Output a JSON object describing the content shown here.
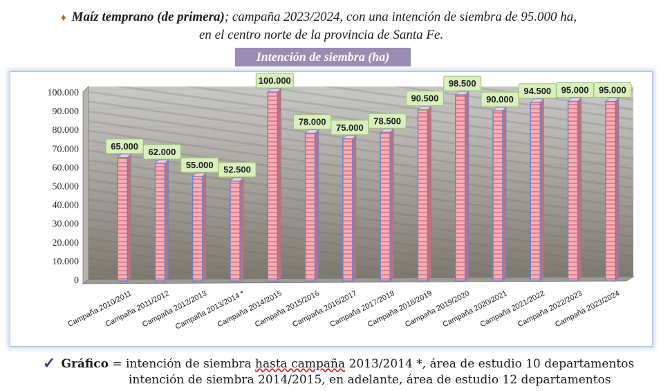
{
  "header": {
    "bullet": "♦",
    "title_bold": "Maíz temprano (de primera)",
    "title_rest": "; campaña 2023/2024, con una intención de siembra de 95.000 ha,",
    "line2": "en el centro norte de la provincia de Santa Fe."
  },
  "footnote": {
    "check": "✓",
    "label": "Gráfico",
    "eq": " = intención de siembra ",
    "underlined": "hasta campaña",
    "rest1": " 2013/2014 *, área de estudio 10 departamentos",
    "line2": "intención de siembra 2014/2015, en adelante, área de estudio 12 departamentos"
  },
  "colors": {
    "bar_fill": "#f2b0b8",
    "bar_stripe": "#e36a78",
    "bar_edge": "#6b82c7",
    "label_bg": "#d9efc0",
    "label_border": "#9cc46e",
    "axis": "#777777",
    "title_bg": "#9a8cb3"
  },
  "chart_data": {
    "type": "bar",
    "title": "Intención de siembra (ha)",
    "categories": [
      "Campaña 2010/2011",
      "Campaña 2011/2012",
      "Campaña 2012/2013",
      "Campaña 2013/2014 *",
      "Campaña 2014/2015",
      "Campaña 2015/2016",
      "Campaña 2016/2017",
      "Campaña 2017/2018",
      "Campaña 2018/2019",
      "Campaña 2019/2020",
      "Campaña 2020/2021",
      "Campaña 2021/2022",
      "Campaña 2022/2023",
      "Campaña 2023/2024"
    ],
    "values": [
      65000,
      62000,
      55000,
      52500,
      100000,
      78000,
      75000,
      78500,
      90500,
      98500,
      90000,
      94500,
      95000,
      95000
    ],
    "value_labels": [
      "65.000",
      "62.000",
      "55.000",
      "52.500",
      "100.000",
      "78.000",
      "75.000",
      "78.500",
      "90.500",
      "98.500",
      "90.000",
      "94.500",
      "95.000",
      "95.000"
    ],
    "yticks": [
      0,
      10000,
      20000,
      30000,
      40000,
      50000,
      60000,
      70000,
      80000,
      90000,
      100000
    ],
    "ytick_labels": [
      "0",
      "10.000",
      "20.000",
      "30.000",
      "40.000",
      "50.000",
      "60.000",
      "70.000",
      "80.000",
      "90.000",
      "100.000"
    ],
    "ylim": [
      0,
      100000
    ],
    "xlabel": "",
    "ylabel": ""
  }
}
